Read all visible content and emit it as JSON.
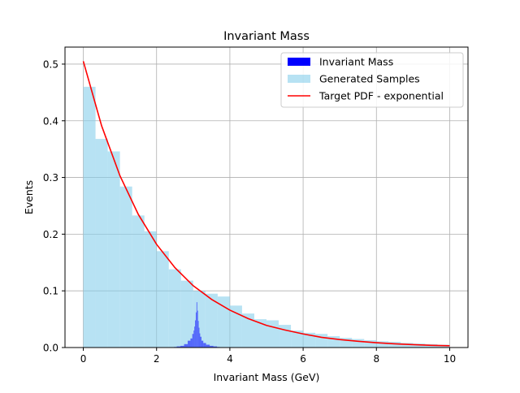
{
  "chart_data": {
    "type": "bar",
    "title": "Invariant Mass",
    "xlabel": "Invariant Mass (GeV)",
    "ylabel": "Events",
    "xlim": [
      -0.5,
      10.5
    ],
    "ylim": [
      0,
      0.53
    ],
    "xticks": [
      0,
      2,
      4,
      6,
      8,
      10
    ],
    "yticks": [
      0.0,
      0.1,
      0.2,
      0.3,
      0.4,
      0.5
    ],
    "xtick_labels": [
      "0",
      "2",
      "4",
      "6",
      "8",
      "10"
    ],
    "ytick_labels": [
      "0.0",
      "0.1",
      "0.2",
      "0.3",
      "0.4",
      "0.5"
    ],
    "grid": true,
    "legend_position": "top-right",
    "legend": [
      "Invariant Mass",
      "Generated Samples",
      "Target PDF - exponential"
    ],
    "colors": {
      "invariant_mass": "#0000ff",
      "generated_samples": "#87ceeb",
      "target_pdf": "#ff0000",
      "grid": "#b0b0b0"
    },
    "series": [
      {
        "name": "Generated Samples",
        "kind": "histogram",
        "bin_edges": [
          0,
          0.333,
          0.667,
          1.0,
          1.333,
          1.667,
          2.0,
          2.333,
          2.667,
          3.0,
          3.333,
          3.667,
          4.0,
          4.333,
          4.667,
          5.0,
          5.333,
          5.667,
          6.0,
          6.333,
          6.667,
          7.0,
          7.333,
          7.667,
          8.0,
          8.333,
          8.667,
          9.0,
          9.333,
          9.667,
          10.0
        ],
        "values": [
          0.46,
          0.368,
          0.346,
          0.284,
          0.233,
          0.205,
          0.17,
          0.138,
          0.118,
          0.1,
          0.095,
          0.09,
          0.074,
          0.06,
          0.05,
          0.048,
          0.04,
          0.03,
          0.026,
          0.024,
          0.02,
          0.017,
          0.015,
          0.013,
          0.011,
          0.01,
          0.008,
          0.007,
          0.006,
          0.005
        ]
      },
      {
        "name": "Invariant Mass",
        "kind": "histogram",
        "x": [
          2.5,
          2.6,
          2.7,
          2.8,
          2.9,
          2.95,
          3.0,
          3.02,
          3.04,
          3.06,
          3.08,
          3.1,
          3.12,
          3.14,
          3.16,
          3.18,
          3.2,
          3.25,
          3.3,
          3.4,
          3.5,
          3.6,
          3.7
        ],
        "values": [
          0.001,
          0.002,
          0.003,
          0.006,
          0.012,
          0.016,
          0.024,
          0.03,
          0.037,
          0.048,
          0.062,
          0.08,
          0.065,
          0.047,
          0.035,
          0.025,
          0.019,
          0.012,
          0.008,
          0.005,
          0.003,
          0.002,
          0.001
        ]
      },
      {
        "name": "Target PDF - exponential",
        "kind": "line",
        "x": [
          0,
          0.5,
          1.0,
          1.5,
          2.0,
          2.5,
          3.0,
          3.5,
          4.0,
          4.5,
          5.0,
          5.5,
          6.0,
          6.5,
          7.0,
          7.5,
          8.0,
          8.5,
          9.0,
          9.5,
          10.0
        ],
        "values": [
          0.505,
          0.391,
          0.303,
          0.235,
          0.182,
          0.141,
          0.109,
          0.085,
          0.066,
          0.051,
          0.039,
          0.031,
          0.024,
          0.018,
          0.014,
          0.011,
          0.0085,
          0.0066,
          0.0051,
          0.0039,
          0.0031
        ]
      }
    ]
  }
}
